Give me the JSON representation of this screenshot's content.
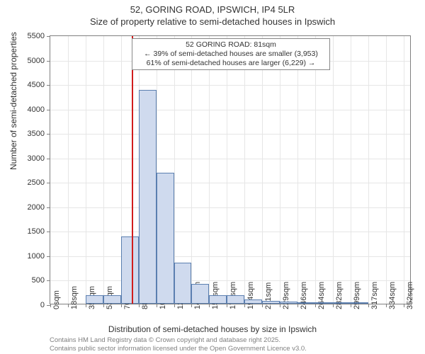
{
  "title": "52, GORING ROAD, IPSWICH, IP4 5LR",
  "subtitle": "Size of property relative to semi-detached houses in Ipswich",
  "chart": {
    "type": "histogram",
    "xlabel": "Distribution of semi-detached houses by size in Ipswich",
    "ylabel": "Number of semi-detached properties",
    "xlim": [
      0,
      360
    ],
    "ylim": [
      0,
      5500
    ],
    "ytick_step": 500,
    "xtick_step": 17.6,
    "xtick_labels": [
      "0sqm",
      "18sqm",
      "35sqm",
      "53sqm",
      "70sqm",
      "88sqm",
      "106sqm",
      "123sqm",
      "141sqm",
      "158sqm",
      "176sqm",
      "194sqm",
      "211sqm",
      "229sqm",
      "246sqm",
      "264sqm",
      "282sqm",
      "299sqm",
      "317sqm",
      "334sqm",
      "352sqm"
    ],
    "bar_fill": "#cfdaee",
    "bar_border": "#5b7fb0",
    "grid_color": "#e6e6e6",
    "axis_color": "#808080",
    "background": "#ffffff",
    "bar_x_edges": [
      17.6,
      35.2,
      52.8,
      70.4,
      88.0,
      105.6,
      123.2,
      140.8,
      158.4,
      176.0,
      193.6,
      211.2,
      228.8,
      246.4,
      264.0,
      281.6,
      299.2,
      316.8,
      334.4,
      352.0
    ],
    "bar_heights": [
      0,
      170,
      170,
      1380,
      4370,
      2680,
      840,
      410,
      170,
      170,
      80,
      60,
      40,
      30,
      20,
      10,
      10,
      0,
      0,
      0
    ],
    "marker": {
      "x": 81,
      "color": "#d11d1d",
      "width": 2
    },
    "annotation": {
      "line1": "52 GORING ROAD: 81sqm",
      "line2": "← 39% of semi-detached houses are smaller (3,953)",
      "line3": "61% of semi-detached houses are larger (6,229) →",
      "x_center": 180,
      "y_top": 5460
    }
  },
  "credit": {
    "line1": "Contains HM Land Registry data © Crown copyright and database right 2025.",
    "line2": "Contains public sector information licensed under the Open Government Licence v3.0."
  },
  "fontsizes": {
    "title": 13,
    "axis_label": 12,
    "tick": 11,
    "annot": 10.5,
    "credit": 9.5
  }
}
